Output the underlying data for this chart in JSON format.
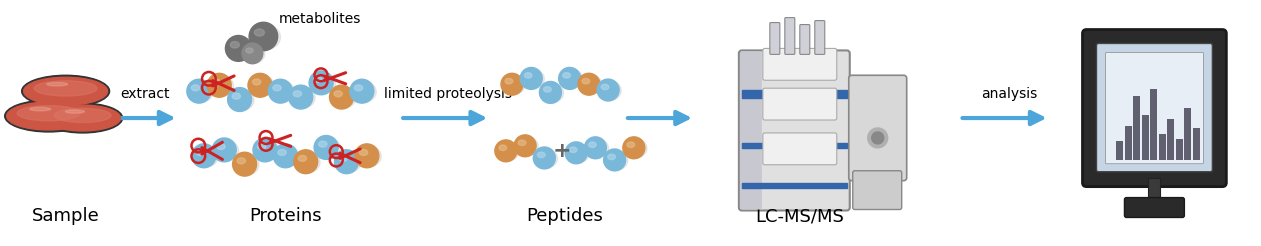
{
  "figsize": [
    12.61,
    2.46
  ],
  "dpi": 100,
  "background_color": "#ffffff",
  "labels": {
    "sample": "Sample",
    "proteins": "Proteins",
    "peptides": "Peptides",
    "lcmsms": "LC-MS/MS",
    "metabolites": "metabolites",
    "extract": "extract",
    "limited_proteolysis": "limited proteolysis",
    "analysis": "analysis"
  },
  "arrow_color": "#4da6d9",
  "label_fontsize": 13,
  "small_fontsize": 10,
  "label_color": "#000000",
  "blue_sphere": "#7ab8d9",
  "blue_sphere_light": "#b8d9ed",
  "blue_sphere_dark": "#5090b8",
  "orange_sphere": "#d4904a",
  "orange_sphere_light": "#e8c090",
  "orange_sphere_dark": "#b06820",
  "gray_sphere": "#707070",
  "gray_sphere_light": "#a0a0a0",
  "gray_sphere_dark": "#404040",
  "petri_fill": "#cc5544",
  "petri_rim": "#222222",
  "scissors_color": "#cc2222"
}
